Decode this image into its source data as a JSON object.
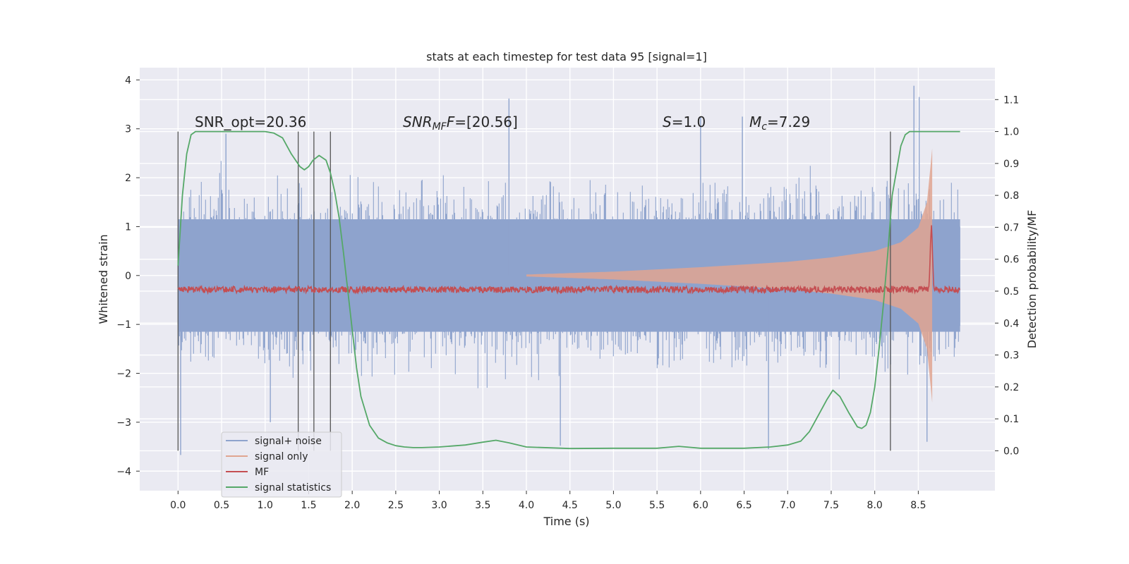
{
  "chart_data": {
    "type": "line",
    "title": "stats at each timestep for test data 95 [signal=1]",
    "xlabel": "Time (s)",
    "ylabel": "Whitened strain",
    "y2label": "Detection probability/MF",
    "xlim": [
      -0.44,
      9.38
    ],
    "ylim": [
      -4.4,
      4.25
    ],
    "y2lim": [
      -0.125,
      1.2
    ],
    "xticks": [
      "0.0",
      "0.5",
      "1.0",
      "1.5",
      "2.0",
      "2.5",
      "3.0",
      "3.5",
      "4.0",
      "4.5",
      "5.0",
      "5.5",
      "6.0",
      "6.5",
      "7.0",
      "7.5",
      "8.0",
      "8.5"
    ],
    "yticks": [
      "4",
      "3",
      "2",
      "1",
      "0",
      "−1",
      "−2",
      "−3",
      "−4"
    ],
    "y2ticks": [
      "1.1",
      "1.0",
      "0.9",
      "0.8",
      "0.7",
      "0.6",
      "0.5",
      "0.4",
      "0.3",
      "0.2",
      "0.1",
      "0.0"
    ],
    "annotations": {
      "snr_opt": "SNR_opt=20.36",
      "snr_mf_prefix": "SNR",
      "snr_mf_sub": "MF",
      "snr_mf_value": "=[20.56]",
      "s_var": "S",
      "s_value": "=1.0",
      "mc_var": "M",
      "mc_sub": "c",
      "mc_value": "=7.29"
    },
    "vertical_markers_s": [
      0.0,
      1.38,
      1.56,
      1.75,
      8.18
    ],
    "legend": {
      "position": "lower-left",
      "entries": [
        "signal+ noise",
        "signal only",
        "MF",
        "signal statistics"
      ]
    },
    "series": [
      {
        "name": "signal+ noise",
        "axis": "left",
        "color": "#8ea3cd",
        "t_start": 0.0,
        "t_end": 8.98,
        "envelope_typical": 2.2,
        "peaks": [
          {
            "t": 0.03,
            "v": -3.67
          },
          {
            "t": 0.55,
            "v": 2.9
          },
          {
            "t": 1.06,
            "v": -3.0
          },
          {
            "t": 3.8,
            "v": 3.62
          },
          {
            "t": 4.39,
            "v": -3.48
          },
          {
            "t": 6.0,
            "v": 3.25
          },
          {
            "t": 6.48,
            "v": 3.25
          },
          {
            "t": 6.78,
            "v": -3.55
          },
          {
            "t": 8.45,
            "v": 3.88
          },
          {
            "t": 8.51,
            "v": 3.65
          },
          {
            "t": 8.6,
            "v": -3.4
          }
        ]
      },
      {
        "name": "signal only",
        "axis": "left",
        "color": "#e0a590",
        "t": [
          0.0,
          2.0,
          4.0,
          5.0,
          6.0,
          7.0,
          7.5,
          8.0,
          8.3,
          8.5,
          8.6,
          8.66,
          8.68
        ],
        "amplitude": [
          0.0,
          0.0,
          0.02,
          0.08,
          0.17,
          0.28,
          0.37,
          0.5,
          0.68,
          0.98,
          1.5,
          2.6,
          0.0
        ]
      },
      {
        "name": "MF",
        "axis": "right",
        "color": "#c44e52",
        "t_start": 0.0,
        "t_end": 8.98,
        "baseline": 0.505,
        "noise_amplitude": 0.01,
        "peak": {
          "t": 8.65,
          "v": 0.7
        }
      },
      {
        "name": "signal statistics",
        "axis": "right",
        "color": "#55a868",
        "t": [
          0.0,
          0.05,
          0.1,
          0.15,
          0.2,
          0.3,
          0.5,
          0.8,
          1.0,
          1.1,
          1.2,
          1.3,
          1.4,
          1.45,
          1.5,
          1.55,
          1.62,
          1.7,
          1.75,
          1.8,
          1.85,
          1.9,
          1.95,
          2.0,
          2.05,
          2.1,
          2.2,
          2.3,
          2.4,
          2.5,
          2.6,
          2.7,
          2.8,
          3.0,
          3.3,
          3.5,
          3.65,
          3.8,
          4.0,
          4.5,
          5.0,
          5.5,
          5.75,
          6.0,
          6.5,
          6.8,
          7.0,
          7.15,
          7.25,
          7.35,
          7.45,
          7.52,
          7.6,
          7.7,
          7.8,
          7.85,
          7.9,
          7.95,
          8.0,
          8.05,
          8.1,
          8.15,
          8.2,
          8.3,
          8.35,
          8.4,
          8.5,
          8.7,
          8.9,
          8.98
        ],
        "values": [
          0.58,
          0.8,
          0.93,
          0.99,
          1.0,
          1.0,
          1.0,
          1.0,
          1.0,
          0.995,
          0.98,
          0.93,
          0.89,
          0.88,
          0.89,
          0.91,
          0.925,
          0.91,
          0.87,
          0.81,
          0.73,
          0.62,
          0.5,
          0.38,
          0.26,
          0.17,
          0.08,
          0.04,
          0.025,
          0.016,
          0.012,
          0.01,
          0.01,
          0.012,
          0.018,
          0.027,
          0.033,
          0.025,
          0.012,
          0.007,
          0.008,
          0.008,
          0.014,
          0.008,
          0.008,
          0.012,
          0.018,
          0.03,
          0.06,
          0.11,
          0.16,
          0.19,
          0.17,
          0.12,
          0.075,
          0.07,
          0.08,
          0.12,
          0.2,
          0.32,
          0.46,
          0.62,
          0.8,
          0.955,
          0.99,
          1.0,
          1.0,
          1.0,
          1.0,
          1.0
        ]
      }
    ]
  }
}
